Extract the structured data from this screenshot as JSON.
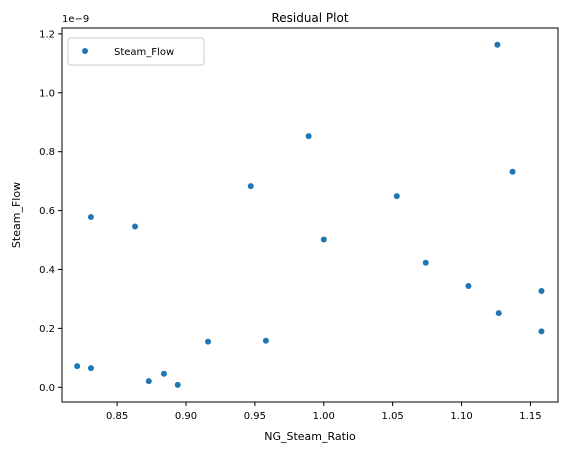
{
  "chart_data": {
    "type": "scatter",
    "title": "Residual Plot",
    "xlabel": "NG_Steam_Ratio",
    "ylabel": "Steam_Flow",
    "y_offset_label": "1e−9",
    "xlim": [
      0.81,
      1.17
    ],
    "ylim": [
      -0.05,
      1.22
    ],
    "x_ticks": [
      0.85,
      0.9,
      0.95,
      1.0,
      1.05,
      1.1,
      1.15
    ],
    "x_tick_labels": [
      "0.85",
      "0.90",
      "0.95",
      "1.00",
      "1.05",
      "1.10",
      "1.15"
    ],
    "y_ticks": [
      0.0,
      0.2,
      0.4,
      0.6,
      0.8,
      1.0,
      1.2
    ],
    "y_tick_labels": [
      "0.0",
      "0.2",
      "0.4",
      "0.6",
      "0.8",
      "1.0",
      "1.2"
    ],
    "grid": false,
    "legend_position": "upper-left",
    "series": [
      {
        "name": "Steam_Flow",
        "color": "#1f77b4",
        "points": [
          {
            "x": 0.821,
            "y": 0.072
          },
          {
            "x": 0.831,
            "y": 0.065
          },
          {
            "x": 0.831,
            "y": 0.578
          },
          {
            "x": 0.863,
            "y": 0.546
          },
          {
            "x": 0.873,
            "y": 0.021
          },
          {
            "x": 0.884,
            "y": 0.046
          },
          {
            "x": 0.894,
            "y": 0.008
          },
          {
            "x": 0.916,
            "y": 0.155
          },
          {
            "x": 0.947,
            "y": 0.683
          },
          {
            "x": 0.958,
            "y": 0.158
          },
          {
            "x": 0.989,
            "y": 0.853
          },
          {
            "x": 1.0,
            "y": 0.502
          },
          {
            "x": 1.053,
            "y": 0.649
          },
          {
            "x": 1.074,
            "y": 0.423
          },
          {
            "x": 1.105,
            "y": 0.344
          },
          {
            "x": 1.126,
            "y": 1.163
          },
          {
            "x": 1.127,
            "y": 0.252
          },
          {
            "x": 1.137,
            "y": 0.732
          },
          {
            "x": 1.158,
            "y": 0.327
          },
          {
            "x": 1.158,
            "y": 0.19
          }
        ]
      }
    ]
  }
}
